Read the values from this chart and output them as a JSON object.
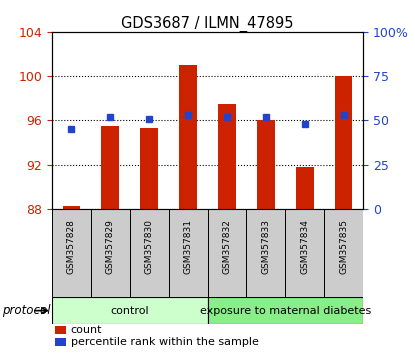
{
  "title": "GDS3687 / ILMN_47895",
  "samples": [
    "GSM357828",
    "GSM357829",
    "GSM357830",
    "GSM357831",
    "GSM357832",
    "GSM357833",
    "GSM357834",
    "GSM357835"
  ],
  "bar_values": [
    88.3,
    95.5,
    95.3,
    101.0,
    97.5,
    96.0,
    91.8,
    100.0
  ],
  "percentile_values": [
    45,
    52,
    51,
    53,
    52,
    52,
    48,
    53
  ],
  "bar_color": "#cc2200",
  "percentile_color": "#2244cc",
  "left_ylim": [
    88,
    104
  ],
  "left_yticks": [
    88,
    92,
    96,
    100,
    104
  ],
  "right_ylim": [
    0,
    100
  ],
  "right_yticks": [
    0,
    25,
    50,
    75,
    100
  ],
  "right_yticklabels": [
    "0",
    "25",
    "50",
    "75",
    "100%"
  ],
  "grid_yticks": [
    92,
    96,
    100
  ],
  "protocol_groups": [
    {
      "label": "control",
      "start": 0,
      "end": 4,
      "color": "#ccffcc"
    },
    {
      "label": "exposure to maternal diabetes",
      "start": 4,
      "end": 8,
      "color": "#88ee88"
    }
  ],
  "sample_box_color": "#cccccc",
  "protocol_label": "protocol",
  "legend_count_label": "count",
  "legend_percentile_label": "percentile rank within the sample",
  "background_color": "#ffffff",
  "tick_label_color_left": "#cc2200",
  "tick_label_color_right": "#2244cc"
}
